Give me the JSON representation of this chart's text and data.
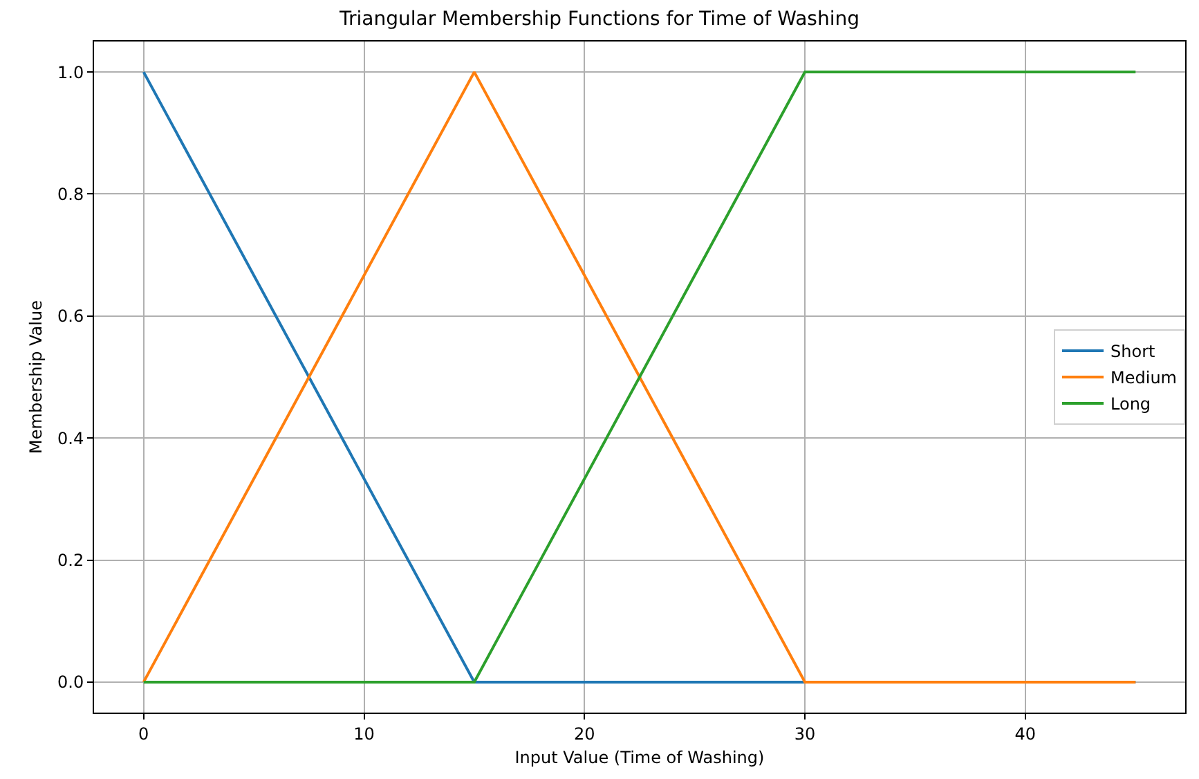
{
  "chart_data": {
    "type": "line",
    "title": "Triangular Membership Functions for Time of Washing",
    "xlabel": "Input Value (Time of Washing)",
    "ylabel": "Membership Value",
    "x": [
      0,
      15,
      30,
      45
    ],
    "series": [
      {
        "name": "Short",
        "color": "#1f77b4",
        "values": [
          1,
          0,
          0,
          0
        ]
      },
      {
        "name": "Medium",
        "color": "#ff7f0e",
        "values": [
          0,
          1,
          0,
          0
        ]
      },
      {
        "name": "Long",
        "color": "#2ca02c",
        "values": [
          0,
          0,
          1,
          1
        ]
      }
    ],
    "xlim": [
      -2.25,
      47.25
    ],
    "xticks": [
      0,
      10,
      20,
      30,
      40
    ],
    "ylim": [
      -0.05,
      1.05
    ],
    "yticks": [
      {
        "value": 0,
        "label": "0.0"
      },
      {
        "value": 0.2,
        "label": "0.2"
      },
      {
        "value": 0.4,
        "label": "0.4"
      },
      {
        "value": 0.6,
        "label": "0.6"
      },
      {
        "value": 0.8,
        "label": "0.8"
      },
      {
        "value": 1,
        "label": "1.0"
      }
    ],
    "grid": true,
    "legend": "right",
    "marker": "none",
    "line_style": "solid"
  }
}
